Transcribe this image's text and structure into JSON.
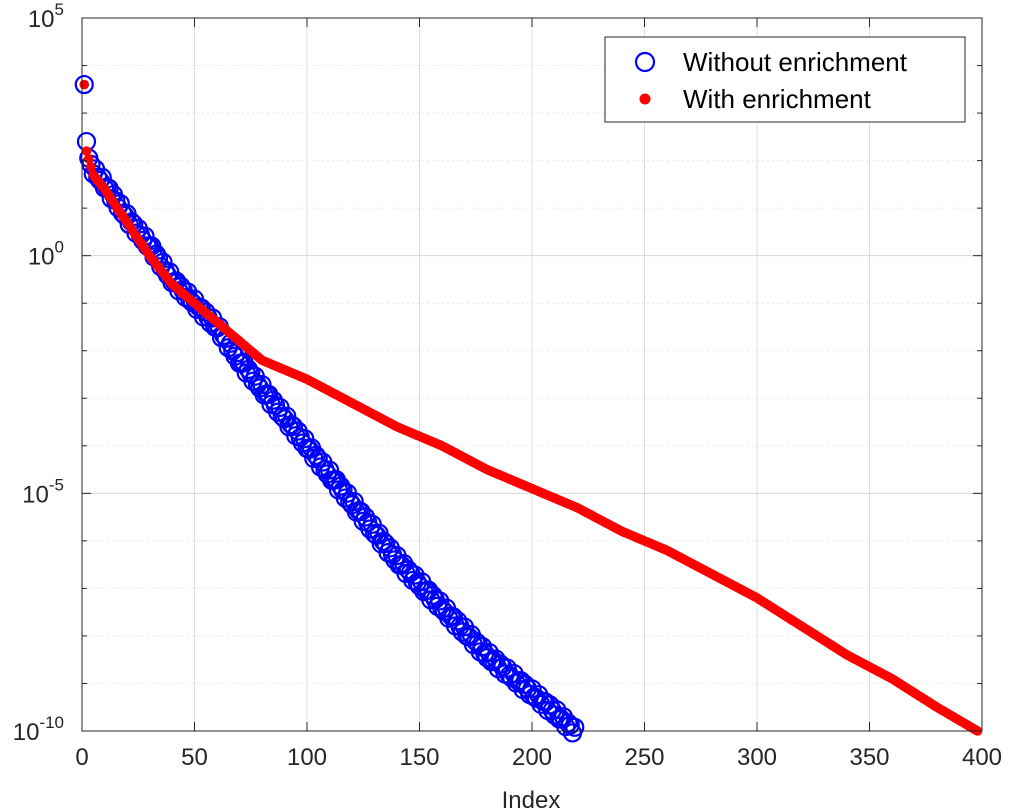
{
  "chart_data": {
    "type": "scatter",
    "title": "",
    "xlabel": "Index",
    "ylabel": "",
    "xlim": [
      0,
      400
    ],
    "ylim_log10": [
      -10,
      5
    ],
    "yscale": "log",
    "grid": true,
    "minor_grid": true,
    "legend_placement": "top-right",
    "x_ticks": [
      0,
      50,
      100,
      150,
      200,
      250,
      300,
      350,
      400
    ],
    "x_tick_labels": [
      "0",
      "50",
      "100",
      "150",
      "200",
      "250",
      "300",
      "350",
      "400"
    ],
    "y_ticks_log10": [
      -10,
      -5,
      0,
      5
    ],
    "y_tick_labels": [
      {
        "base": "10",
        "exp": "-10"
      },
      {
        "base": "10",
        "exp": "-5"
      },
      {
        "base": "10",
        "exp": "0"
      },
      {
        "base": "10",
        "exp": "5"
      }
    ],
    "series": [
      {
        "name": "Without enrichment",
        "marker": "open-circle",
        "color": "#0000ff",
        "count": 219,
        "points_log10": [
          [
            1,
            3.6
          ],
          [
            2,
            2.4
          ],
          [
            3,
            2.0
          ],
          [
            5,
            1.8
          ],
          [
            10,
            1.5
          ],
          [
            20,
            0.8
          ],
          [
            30,
            0.2
          ],
          [
            40,
            -0.5
          ],
          [
            50,
            -1.0
          ],
          [
            60,
            -1.5
          ],
          [
            70,
            -2.2
          ],
          [
            80,
            -2.8
          ],
          [
            90,
            -3.4
          ],
          [
            100,
            -4.0
          ],
          [
            110,
            -4.6
          ],
          [
            120,
            -5.2
          ],
          [
            130,
            -5.8
          ],
          [
            140,
            -6.4
          ],
          [
            150,
            -6.9
          ],
          [
            160,
            -7.4
          ],
          [
            170,
            -7.9
          ],
          [
            180,
            -8.4
          ],
          [
            190,
            -8.8
          ],
          [
            200,
            -9.2
          ],
          [
            210,
            -9.6
          ],
          [
            219,
            -10.0
          ]
        ]
      },
      {
        "name": "With enrichment",
        "marker": "filled-dot",
        "color": "#ff0000",
        "count": 398,
        "points_log10": [
          [
            1,
            3.6
          ],
          [
            2,
            2.2
          ],
          [
            5,
            1.7
          ],
          [
            10,
            1.4
          ],
          [
            20,
            0.7
          ],
          [
            30,
            0.0
          ],
          [
            40,
            -0.6
          ],
          [
            50,
            -1.0
          ],
          [
            60,
            -1.4
          ],
          [
            70,
            -1.8
          ],
          [
            80,
            -2.2
          ],
          [
            100,
            -2.6
          ],
          [
            120,
            -3.1
          ],
          [
            140,
            -3.6
          ],
          [
            160,
            -4.0
          ],
          [
            180,
            -4.5
          ],
          [
            200,
            -4.9
          ],
          [
            220,
            -5.3
          ],
          [
            240,
            -5.8
          ],
          [
            260,
            -6.2
          ],
          [
            280,
            -6.7
          ],
          [
            300,
            -7.2
          ],
          [
            320,
            -7.8
          ],
          [
            340,
            -8.4
          ],
          [
            360,
            -8.9
          ],
          [
            380,
            -9.5
          ],
          [
            398,
            -10.0
          ]
        ]
      }
    ]
  }
}
